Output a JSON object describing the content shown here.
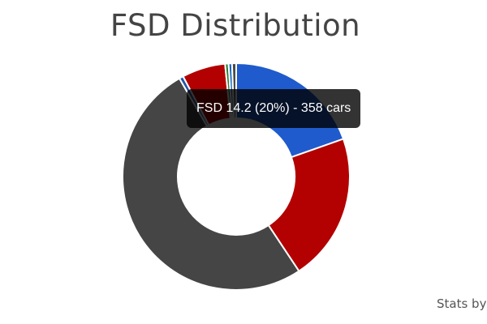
{
  "page": {
    "title": "FSD Distribution",
    "footer": "Stats by"
  },
  "tooltip": {
    "text": "FSD 14.2 (20%) - 358 cars"
  },
  "chart_data": {
    "type": "pie",
    "style": "donut",
    "title": "FSD Distribution",
    "legend": "none",
    "series": [
      {
        "values": [
          20,
          21.5,
          52,
          0.6,
          6.3,
          0.5,
          0.5,
          0.6
        ],
        "colors": [
          "#1f5bcc",
          "#b30000",
          "#454545",
          "#2255aa",
          "#b30000",
          "#2e7d32",
          "#1565c0",
          "#4a4a4a"
        ]
      }
    ],
    "highlighted": {
      "label": "FSD 14.2",
      "percent": 20,
      "count": 358
    }
  }
}
